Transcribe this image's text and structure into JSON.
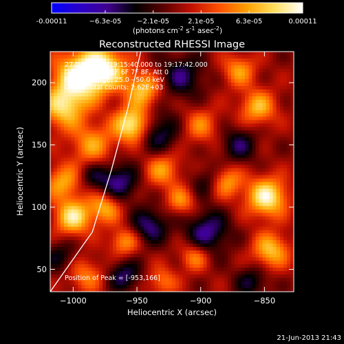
{
  "colorbar": {
    "tick_labels": [
      "-0.00011",
      "−6.3e-05",
      "−2.1e-05",
      "2.1e-05",
      "6.3e-05",
      "0.00011"
    ],
    "tick_values": [
      -0.00011,
      -6.3e-05,
      -2.1e-05,
      2.1e-05,
      6.3e-05,
      0.00011
    ],
    "range": [
      -0.00011,
      0.00011
    ],
    "unit_main": "(photons cm",
    "unit_exp1": "-2",
    "unit_mid": " s",
    "unit_exp2": "-1",
    "unit_end": " asec",
    "unit_exp3": "-2",
    "unit_close": ")",
    "colors": [
      "#0000ff",
      "#2a00c8",
      "#400090",
      "#000000",
      "#5a0000",
      "#c01000",
      "#ff5000",
      "#ffa000",
      "#ffe060",
      "#ffffff"
    ]
  },
  "chart_data": {
    "type": "heatmap",
    "title": "Reconstructed RHESSI Image",
    "xlabel": "Heliocentric X (arcsec)",
    "ylabel": "Heliocentric Y (arcsec)",
    "xlim": [
      -1018,
      -827
    ],
    "ylim": [
      32,
      225
    ],
    "x_ticks": [
      -1000,
      -950,
      -900,
      -850
    ],
    "x_tick_labels": [
      "−1000",
      "−950",
      "−900",
      "−850"
    ],
    "y_ticks": [
      50,
      100,
      150,
      200
    ],
    "y_tick_labels": [
      "50",
      "100",
      "150",
      "200"
    ],
    "annotations": [
      "27-Nov-2004 19:15:40.000 to 19:17:42.000",
      "Detectors: 4F 5F 6F 7F 8F, Att 0",
      "Energy Range: 25.0 - 50.0 keV",
      "Clean.  Total counts: 2.62E+03"
    ],
    "peak_label": "Position of Peak = [-953,166]",
    "peak": [
      -953,
      166
    ],
    "limb_curve": [
      [
        -1018,
        32
      ],
      [
        -985,
        80
      ],
      [
        -970,
        130
      ],
      [
        -957,
        180
      ],
      [
        -947,
        225
      ]
    ],
    "blobs": [
      {
        "x": -995,
        "y": 205,
        "amp": 1.0,
        "r": 14
      },
      {
        "x": -975,
        "y": 212,
        "amp": 0.85,
        "r": 12
      },
      {
        "x": -1008,
        "y": 180,
        "amp": 0.75,
        "r": 12
      },
      {
        "x": -953,
        "y": 166,
        "amp": 1.05,
        "r": 10
      },
      {
        "x": -945,
        "y": 195,
        "amp": 0.7,
        "r": 10
      },
      {
        "x": -985,
        "y": 150,
        "amp": 0.55,
        "r": 12
      },
      {
        "x": -1008,
        "y": 120,
        "amp": 0.6,
        "r": 10
      },
      {
        "x": -1000,
        "y": 92,
        "amp": 0.85,
        "r": 10
      },
      {
        "x": -975,
        "y": 100,
        "amp": 0.65,
        "r": 9
      },
      {
        "x": -960,
        "y": 72,
        "amp": 0.55,
        "r": 8
      },
      {
        "x": -990,
        "y": 45,
        "amp": 0.45,
        "r": 10
      },
      {
        "x": -930,
        "y": 130,
        "amp": 0.55,
        "r": 10
      },
      {
        "x": -915,
        "y": 105,
        "amp": 0.5,
        "r": 8
      },
      {
        "x": -900,
        "y": 165,
        "amp": 0.45,
        "r": 10
      },
      {
        "x": -880,
        "y": 120,
        "amp": 0.6,
        "r": 9
      },
      {
        "x": -855,
        "y": 180,
        "amp": 0.65,
        "r": 10
      },
      {
        "x": -848,
        "y": 108,
        "amp": 0.95,
        "r": 11
      },
      {
        "x": -845,
        "y": 65,
        "amp": 0.7,
        "r": 10
      },
      {
        "x": -870,
        "y": 210,
        "amp": 0.55,
        "r": 9
      },
      {
        "x": -905,
        "y": 60,
        "amp": 0.5,
        "r": 8
      },
      {
        "x": -930,
        "y": 40,
        "amp": 0.45,
        "r": 8
      },
      {
        "x": -965,
        "y": 120,
        "amp": -0.6,
        "r": 11
      },
      {
        "x": -935,
        "y": 160,
        "amp": -0.55,
        "r": 12
      },
      {
        "x": -915,
        "y": 205,
        "amp": -0.5,
        "r": 12
      },
      {
        "x": -895,
        "y": 80,
        "amp": -0.6,
        "r": 12
      },
      {
        "x": -870,
        "y": 150,
        "amp": -0.45,
        "r": 10
      },
      {
        "x": -940,
        "y": 85,
        "amp": -0.55,
        "r": 10
      },
      {
        "x": -960,
        "y": 45,
        "amp": -0.5,
        "r": 9
      },
      {
        "x": -860,
        "y": 40,
        "amp": -0.4,
        "r": 9
      },
      {
        "x": -895,
        "y": 120,
        "amp": -0.35,
        "r": 9
      },
      {
        "x": -1010,
        "y": 60,
        "amp": -0.35,
        "r": 9
      },
      {
        "x": -985,
        "y": 125,
        "amp": -0.3,
        "r": 8
      }
    ]
  },
  "footer": {
    "timestamp": "21-Jun-2013 21:43"
  }
}
